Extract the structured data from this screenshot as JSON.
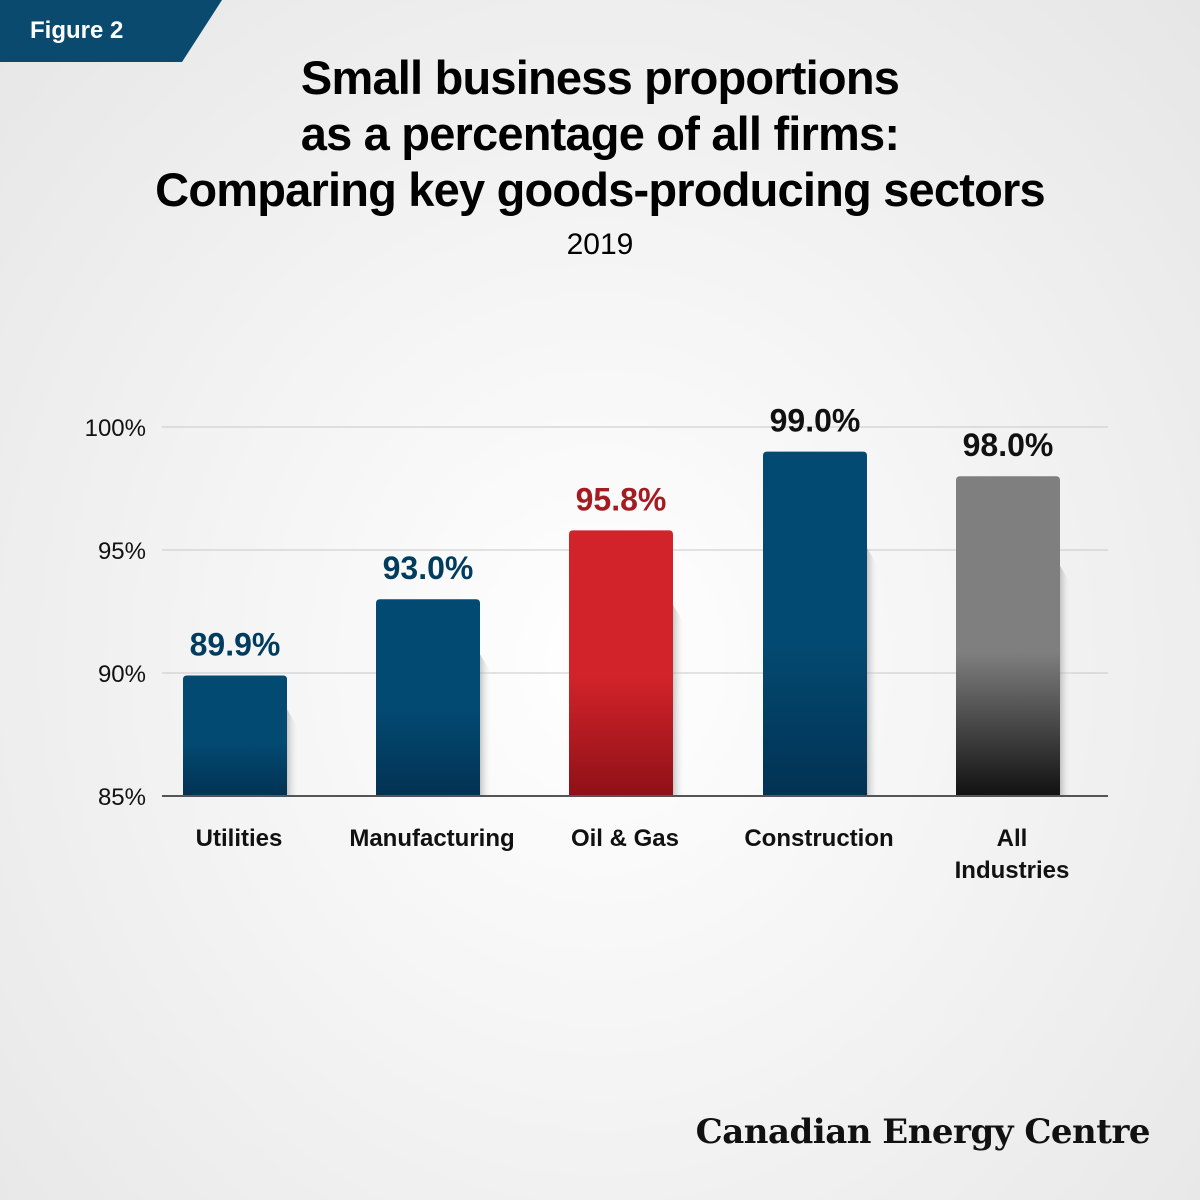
{
  "figure_label": "Figure 2",
  "title_lines": [
    "Small business proportions",
    "as a percentage of all firms:",
    "Comparing key goods-producing sectors"
  ],
  "subtitle": "2019",
  "brand": "Canadian Energy Centre",
  "colors": {
    "navy": "#034a72",
    "navy_dark": "#023253",
    "red": "#d2232a",
    "red_dark": "#8e1117",
    "gray": "#7f7f7f",
    "gray_dark": "#111111",
    "navy_label": "#003c5e",
    "red_label": "#a31c22",
    "black_label": "#111111",
    "figure_tag": "#0a4a6f"
  },
  "chart_data": {
    "type": "bar",
    "title": "Small business proportions as a percentage of all firms: Comparing key goods-producing sectors",
    "subtitle": "2019",
    "categories": [
      "Utilities",
      "Manufacturing",
      "Oil & Gas",
      "Construction",
      "All Industries"
    ],
    "category_label_lines": [
      [
        "Utilities"
      ],
      [
        "Manufacturing"
      ],
      [
        "Oil & Gas"
      ],
      [
        "Construction"
      ],
      [
        "All",
        "Industries"
      ]
    ],
    "values": [
      89.9,
      93.0,
      95.8,
      99.0,
      98.0
    ],
    "value_labels": [
      "89.9%",
      "93.0%",
      "95.8%",
      "99.0%",
      "98.0%"
    ],
    "bar_styles": [
      "navy",
      "navy",
      "red",
      "navy",
      "gray"
    ],
    "label_styles": [
      "navy_label",
      "navy_label",
      "red_label",
      "black_label",
      "black_label"
    ],
    "ylim": [
      85,
      100
    ],
    "yticks": [
      85,
      90,
      95,
      100
    ],
    "ytick_labels": [
      "85%",
      "90%",
      "95%",
      "100%"
    ],
    "grid": true,
    "xlabel": "",
    "ylabel": ""
  }
}
